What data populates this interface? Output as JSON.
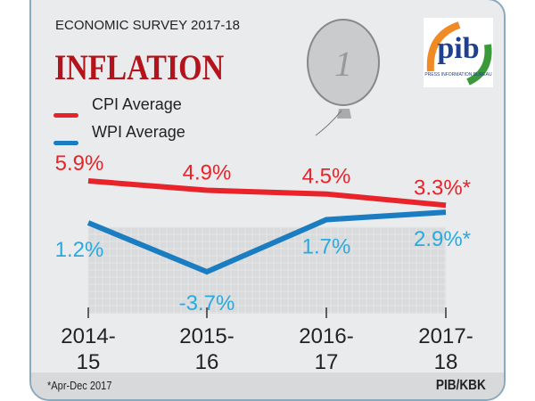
{
  "header": {
    "survey": "ECONOMIC SURVEY 2017-18",
    "title": "INFLATION"
  },
  "logo": {
    "text": "pib",
    "subtitle": "PRESS INFORMATION BUREAU"
  },
  "footer": {
    "note": "*Apr-Dec 2017",
    "credit": "PIB/KBK"
  },
  "colors": {
    "cpi": "#e8232a",
    "wpi": "#1a7cc1",
    "wpi_label": "#2aa9df"
  },
  "chart_data": {
    "type": "line",
    "title": "INFLATION",
    "categories": [
      "2014-15",
      "2015-16",
      "2016-17",
      "2017-18"
    ],
    "category_lines": [
      [
        "2014-",
        "15"
      ],
      [
        "2015-",
        "16"
      ],
      [
        "2016-",
        "17"
      ],
      [
        "2017-",
        "18"
      ]
    ],
    "series": [
      {
        "name": "CPI Average",
        "values": [
          5.9,
          4.9,
          4.5,
          3.3
        ],
        "labels": [
          "5.9%",
          "4.9%",
          "4.5%",
          "3.3%*"
        ]
      },
      {
        "name": "WPI Average",
        "values": [
          1.2,
          -3.7,
          1.7,
          2.9
        ],
        "labels": [
          "1.2%",
          "-3.7%",
          "1.7%",
          "2.9%*"
        ]
      }
    ],
    "legend": "top-left"
  }
}
